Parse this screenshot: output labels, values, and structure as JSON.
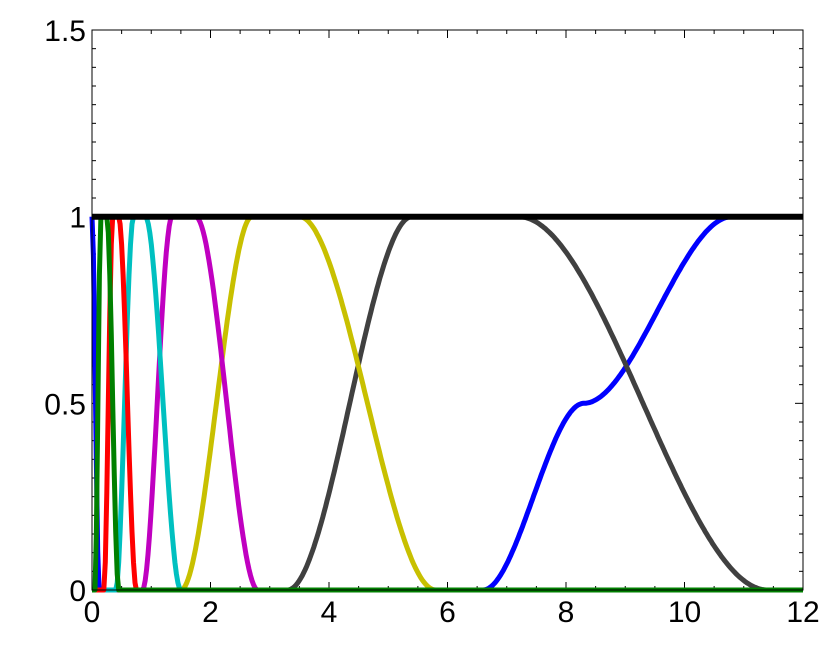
{
  "chart_data": {
    "type": "line",
    "title": "",
    "xlabel": "",
    "ylabel": "",
    "xlim": [
      0,
      12
    ],
    "ylim": [
      0,
      1.5
    ],
    "x_ticks": [
      "0",
      "2",
      "4",
      "6",
      "8",
      "10",
      "12"
    ],
    "y_ticks": [
      "0",
      "0.5",
      "1",
      "1.5"
    ],
    "grid": false,
    "legend": "none",
    "interpolation": "smoothstep between points",
    "series": [
      {
        "color": "#0000ff",
        "points": [
          [
            0,
            1
          ],
          [
            0.12,
            0
          ],
          [
            6.6,
            0
          ],
          [
            8.3,
            0.5
          ],
          [
            10.8,
            1
          ],
          [
            12,
            1
          ]
        ]
      },
      {
        "color": "#404040",
        "points": [
          [
            0,
            0
          ],
          [
            3.3,
            0
          ],
          [
            5.4,
            1
          ],
          [
            7.2,
            1
          ],
          [
            11.4,
            0
          ],
          [
            12,
            0
          ]
        ]
      },
      {
        "color": "#c8c000",
        "points": [
          [
            0,
            0
          ],
          [
            1.5,
            0
          ],
          [
            2.7,
            1
          ],
          [
            3.5,
            1
          ],
          [
            5.8,
            0
          ],
          [
            12,
            0
          ]
        ]
      },
      {
        "color": "#c000c0",
        "points": [
          [
            0,
            0
          ],
          [
            0.85,
            0
          ],
          [
            1.35,
            1
          ],
          [
            1.75,
            1
          ],
          [
            2.8,
            0
          ],
          [
            12,
            0
          ]
        ]
      },
      {
        "color": "#00c0c0",
        "points": [
          [
            0,
            0
          ],
          [
            0.4,
            0
          ],
          [
            0.7,
            1
          ],
          [
            0.9,
            1
          ],
          [
            1.5,
            0
          ],
          [
            12,
            0
          ]
        ]
      },
      {
        "color": "#ff0000",
        "points": [
          [
            0,
            0
          ],
          [
            0.2,
            0
          ],
          [
            0.35,
            1
          ],
          [
            0.45,
            1
          ],
          [
            0.75,
            0
          ],
          [
            12,
            0
          ]
        ]
      },
      {
        "color": "#008000",
        "points": [
          [
            0,
            0
          ],
          [
            0.05,
            0
          ],
          [
            0.15,
            1
          ],
          [
            0.25,
            1
          ],
          [
            0.45,
            0
          ],
          [
            12,
            0
          ]
        ]
      },
      {
        "color": "#000000",
        "points": [
          [
            0,
            1
          ],
          [
            12,
            1
          ]
        ]
      }
    ]
  }
}
